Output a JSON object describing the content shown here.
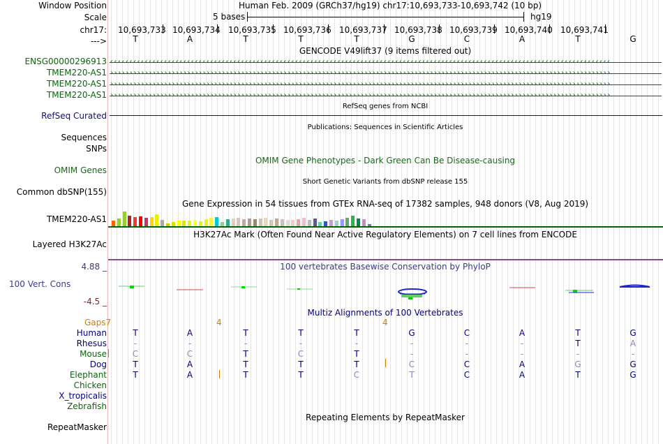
{
  "header": {
    "window_position_label": "Window Position",
    "window_position_value": "Human Feb. 2009 (GRCh37/hg19)   chr17:10,693,733-10,693,742 (10 bp)",
    "scale_label": "Scale",
    "scale_value": "5 bases",
    "scale_assembly": "hg19",
    "chrom_label": "chr17:",
    "strand_label": "--->",
    "positions": [
      "10,693,733",
      "10,693,734",
      "10,693,735",
      "10,693,736",
      "10,693,737",
      "10,693,738",
      "10,693,739",
      "10,693,740",
      "10,693,741"
    ],
    "bases": [
      "T",
      "A",
      "T",
      "T",
      "T",
      "G",
      "C",
      "A",
      "T",
      "G"
    ]
  },
  "tracks": {
    "gencode_title": "GENCODE V49lift37 (9 items filtered out)",
    "gencode_items": [
      {
        "name": "ENSG00000296913",
        "direction": "left"
      },
      {
        "name": "TMEM220-AS1",
        "direction": "right"
      },
      {
        "name": "TMEM220-AS1",
        "direction": "right"
      },
      {
        "name": "TMEM220-AS1",
        "direction": "right"
      }
    ],
    "refseq_title": "RefSeq genes from NCBI",
    "refseq_label": "RefSeq Curated",
    "publications_title": "Publications: Sequences in Scientific Articles",
    "sequences_label": "Sequences",
    "snps_label": "SNPs",
    "omim_title": "OMIM Gene Phenotypes - Dark Green Can Be Disease-causing",
    "omim_label": "OMIM Genes",
    "dbsnp_title": "Short Genetic Variants from dbSNP release 155",
    "dbsnp_label": "Common dbSNP(155)",
    "gtex_title": "Gene Expression in 54 tissues from GTEx RNA-seq of 17382 samples, 948 donors (V8, Aug 2019)",
    "gtex_label": "TMEM220-AS1",
    "gtex_colors": [
      "#ff6600",
      "#9acd32",
      "#9acd32",
      "#b22222",
      "#ff3333",
      "#ff0000",
      "#cc3366",
      "#ffd700",
      "#eeee00",
      "#aaaaaa",
      "#cccc00",
      "#dddd00",
      "#ffff00",
      "#e5e500",
      "#eeee11",
      "#ffff33",
      "#f0f000",
      "#eeee22",
      "#ffee44",
      "#00cdcd",
      "#99cc99",
      "#33aa88",
      "#dfcfbf",
      "#dfbfbf",
      "#c8a89e",
      "#bb9988",
      "#9a8870",
      "#d8c0b0",
      "#e5d6c6",
      "#d4c5b6",
      "#bfaa99",
      "#ccc0b8",
      "#dcdcdc",
      "#eecccc",
      "#f0a0a0",
      "#ffb6c1",
      "#bbbbbb",
      "#5555aa",
      "#66cdaa",
      "#3355cc",
      "#cc99cc",
      "#aacccc",
      "#9999ff",
      "#66aa66",
      "#22bb44",
      "#008855",
      "#cc88cc",
      "#7777aa"
    ],
    "gtex_heights": [
      0.35,
      0.5,
      0.95,
      0.7,
      0.6,
      0.65,
      0.55,
      0.6,
      0.75,
      0.4,
      0.2,
      0.25,
      0.35,
      0.35,
      0.35,
      0.4,
      0.3,
      0.45,
      0.55,
      0.6,
      0.25,
      0.45,
      0.5,
      0.55,
      0.45,
      0.5,
      0.45,
      0.5,
      0.55,
      0.4,
      0.5,
      0.45,
      0.4,
      0.4,
      0.45,
      0.55,
      0.4,
      0.5,
      0.25,
      0.3,
      0.4,
      0.35,
      0.45,
      0.55,
      0.7,
      0.5,
      0.45,
      0.15
    ],
    "h3k27ac_title": "H3K27Ac Mark (Often Found Near Active Regulatory Elements) on 7 cell lines from ENCODE",
    "h3k27ac_label": "Layered H3K27Ac",
    "phylop_title": "100 vertebrates Basewise Conservation by PhyloP",
    "phylop_label": "100 Vert. Cons",
    "phylop_max": "4.88 _",
    "phylop_min": "-4.5 _",
    "multiz_title": "Multiz Alignments of 100 Vertebrates",
    "gaps_label": "Gaps",
    "gap_marks": [
      "7",
      "4",
      "4"
    ],
    "repeatmasker_title": "Repeating Elements by RepeatMasker",
    "repeatmasker_label": "RepeatMasker"
  },
  "alignment": [
    {
      "species": "Human",
      "bases": [
        "T",
        "A",
        "T",
        "T",
        "T",
        "G",
        "C",
        "A",
        "T",
        "G"
      ],
      "faint": []
    },
    {
      "species": "Rhesus",
      "bases": [
        "-",
        "-",
        "-",
        "-",
        "-",
        "-",
        "-",
        "-",
        "T",
        "A"
      ],
      "faint": [
        0,
        1,
        2,
        3,
        4,
        5,
        6,
        7,
        9
      ]
    },
    {
      "species": "Mouse",
      "bases": [
        "C",
        "C",
        "T",
        "C",
        "T",
        "-",
        "-",
        "-",
        "-",
        "-"
      ],
      "faint": [
        0,
        1,
        3,
        5,
        6,
        7,
        8,
        9
      ]
    },
    {
      "species": "Dog",
      "bases": [
        "T",
        "A",
        "T",
        "T",
        "T",
        "C",
        "C",
        "A",
        "G",
        "G"
      ],
      "faint": [
        5,
        8
      ]
    },
    {
      "species": "Elephant",
      "bases": [
        "T",
        "A",
        "T",
        "T",
        "C",
        "T",
        "C",
        "A",
        "T",
        "G"
      ],
      "faint": [
        4,
        5
      ]
    },
    {
      "species": "Chicken",
      "bases": [],
      "faint": []
    },
    {
      "species": "X_tropicalis",
      "bases": [],
      "faint": []
    },
    {
      "species": "Zebrafish",
      "bases": [],
      "faint": []
    }
  ],
  "colors": {
    "gene_green": "#0a660a",
    "refseq_blue": "#0c0c78",
    "omim_green": "#126d12",
    "phylop_blue": "#3a3a8c",
    "gap_orange": "#d17f00",
    "species_navy": "#000080",
    "gtex_baseline": "#006400",
    "h3k27ac_line": "#8b478b"
  }
}
